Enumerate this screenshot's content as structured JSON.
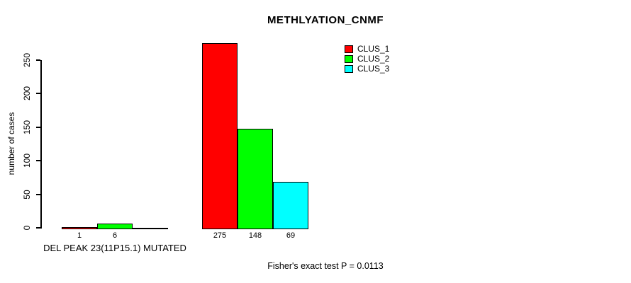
{
  "title": "METHLYATION_CNMF",
  "y_axis": {
    "label": "number of cases",
    "ticks": [
      0,
      50,
      100,
      150,
      200,
      250
    ]
  },
  "legend": {
    "items": [
      {
        "label": "CLUS_1",
        "color": "#FF0000"
      },
      {
        "label": "CLUS_2",
        "color": "#00FF00"
      },
      {
        "label": "CLUS_3",
        "color": "#00FFFF"
      }
    ]
  },
  "footer": "Fisher's exact test P = 0.0113",
  "chart_data": {
    "type": "bar",
    "title": "METHLYATION_CNMF",
    "xlabel": "",
    "ylabel": "number of cases",
    "ylim": [
      0,
      275
    ],
    "grid": false,
    "legend_position": "top-right",
    "series_names": [
      "CLUS_1",
      "CLUS_2",
      "CLUS_3"
    ],
    "colors": [
      "#FF0000",
      "#00FF00",
      "#00FFFF"
    ],
    "groups": [
      {
        "label": "DEL PEAK 23(11P15.1) MUTATED",
        "values": [
          1,
          6,
          0
        ],
        "value_labels": [
          "1",
          "6",
          null
        ]
      },
      {
        "label": "",
        "values": [
          275,
          148,
          69
        ],
        "value_labels": [
          "275",
          "148",
          "69"
        ]
      }
    ],
    "annotation": "Fisher's exact test P = 0.0113"
  }
}
